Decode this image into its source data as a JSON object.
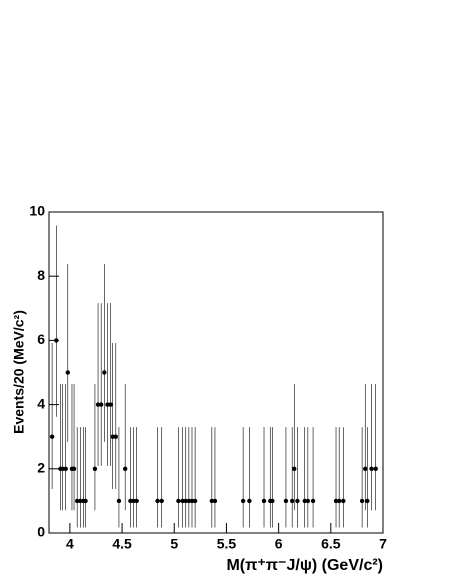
{
  "chart_data": {
    "type": "scatter",
    "xlabel": "M(π⁺π⁻J/ψ) (GeV/c²)",
    "ylabel": "Events/20 (MeV/c²)",
    "xlim": [
      3.8,
      7
    ],
    "xticks": [
      4,
      4.5,
      5,
      5.5,
      6,
      6.5,
      7
    ],
    "ylim": [
      0,
      10
    ],
    "yticks": [
      0,
      2,
      4,
      6,
      8,
      10
    ],
    "series": [
      {
        "color": "#000000",
        "x": [
          3.83,
          3.87,
          3.91,
          3.93,
          3.96,
          3.98,
          4.02,
          4.04,
          4.07,
          4.1,
          4.13,
          4.15,
          4.24,
          4.27,
          4.3,
          4.33,
          4.36,
          4.39,
          4.41,
          4.44,
          4.47,
          4.53,
          4.58,
          4.61,
          4.64,
          4.84,
          4.88,
          5.04,
          5.08,
          5.11,
          5.14,
          5.17,
          5.2,
          5.36,
          5.39,
          5.66,
          5.72,
          5.86,
          5.92,
          5.94,
          6.07,
          6.13,
          6.15,
          6.18,
          6.25,
          6.28,
          6.33,
          6.55,
          6.58,
          6.62,
          6.8,
          6.83,
          6.85,
          6.89,
          6.93
        ],
        "values": [
          3,
          6,
          2,
          2,
          2,
          5,
          2,
          2,
          1,
          1,
          1,
          1,
          2,
          4,
          4,
          5,
          4,
          4,
          3,
          3,
          1,
          2,
          1,
          1,
          1,
          1,
          1,
          1,
          1,
          1,
          1,
          1,
          1,
          1,
          1,
          1,
          1,
          1,
          1,
          1,
          1,
          1,
          2,
          1,
          1,
          1,
          1,
          1,
          1,
          1,
          1,
          2,
          1,
          2,
          2
        ],
        "yerr_low": [
          1.63,
          2.38,
          1.29,
          1.29,
          1.29,
          2.16,
          1.29,
          1.29,
          0.83,
          0.83,
          0.83,
          0.83,
          1.29,
          1.91,
          1.91,
          2.16,
          1.91,
          1.91,
          1.63,
          1.63,
          0.83,
          1.29,
          0.83,
          0.83,
          0.83,
          0.83,
          0.83,
          0.83,
          0.83,
          0.83,
          0.83,
          0.83,
          0.83,
          0.83,
          0.83,
          0.83,
          0.83,
          0.83,
          0.83,
          0.83,
          0.83,
          0.83,
          1.29,
          0.83,
          0.83,
          0.83,
          0.83,
          0.83,
          0.83,
          0.83,
          0.83,
          1.29,
          0.83,
          1.29,
          1.29
        ],
        "yerr_high": [
          2.92,
          3.58,
          2.64,
          2.64,
          2.64,
          3.38,
          2.64,
          2.64,
          2.3,
          2.3,
          2.3,
          2.3,
          2.64,
          3.16,
          3.16,
          3.38,
          3.16,
          3.16,
          2.92,
          2.92,
          2.3,
          2.64,
          2.3,
          2.3,
          2.3,
          2.3,
          2.3,
          2.3,
          2.3,
          2.3,
          2.3,
          2.3,
          2.3,
          2.3,
          2.3,
          2.3,
          2.3,
          2.3,
          2.3,
          2.3,
          2.3,
          2.3,
          2.64,
          2.3,
          2.3,
          2.3,
          2.3,
          2.3,
          2.3,
          2.3,
          2.3,
          2.64,
          2.3,
          2.64,
          2.64
        ]
      }
    ]
  }
}
